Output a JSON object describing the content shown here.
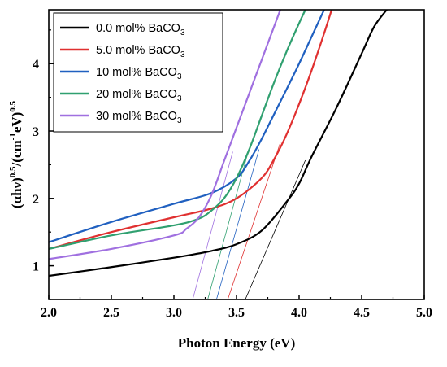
{
  "chart_data": {
    "type": "line",
    "xlabel": "Photon Energy (eV)",
    "ylabel": {
      "parts": [
        {
          "text": "(αhν)",
          "sup": false
        },
        {
          "text": "0.5",
          "sup": true
        },
        {
          "text": "/(cm",
          "sup": false
        },
        {
          "text": "-1",
          "sup": true
        },
        {
          "text": "eV)",
          "sup": false
        },
        {
          "text": "0.5",
          "sup": true
        }
      ]
    },
    "xlim": [
      2.0,
      5.0
    ],
    "ylim": [
      0.5,
      4.8
    ],
    "xticks": [
      "2.0",
      "2.5",
      "3.0",
      "3.5",
      "4.0",
      "4.5",
      "5.0"
    ],
    "xtick_values": [
      2.0,
      2.5,
      3.0,
      3.5,
      4.0,
      4.5,
      5.0
    ],
    "yticks": [
      "1",
      "2",
      "3",
      "4"
    ],
    "ytick_values": [
      1,
      2,
      3,
      4
    ],
    "grid": false,
    "legend_position": "top-left",
    "series": [
      {
        "name": "0.0 mol% BaCO",
        "sub": "3",
        "color": "#000000",
        "x": [
          2.0,
          2.5,
          3.0,
          3.3,
          3.5,
          3.7,
          3.9,
          4.0,
          4.1,
          4.3,
          4.5,
          4.6,
          4.7
        ],
        "y": [
          0.85,
          0.98,
          1.12,
          1.22,
          1.32,
          1.52,
          1.95,
          2.22,
          2.62,
          3.35,
          4.15,
          4.55,
          4.8
        ],
        "tangent": {
          "x": [
            3.57,
            4.0
          ],
          "y": [
            0.5,
            2.35
          ]
        }
      },
      {
        "name": "5.0 mol% BaCO",
        "sub": "3",
        "color": "#e03030",
        "x": [
          2.0,
          2.5,
          3.0,
          3.3,
          3.5,
          3.7,
          3.8,
          3.9,
          4.0,
          4.1,
          4.2,
          4.26
        ],
        "y": [
          1.25,
          1.5,
          1.72,
          1.85,
          2.0,
          2.3,
          2.58,
          2.95,
          3.4,
          3.9,
          4.45,
          4.8
        ],
        "tangent": {
          "x": [
            3.43,
            3.8
          ],
          "y": [
            0.5,
            2.55
          ]
        }
      },
      {
        "name": "10 mol% BaCO",
        "sub": "3",
        "color": "#2060c0",
        "x": [
          2.0,
          2.5,
          3.0,
          3.3,
          3.5,
          3.6,
          3.7,
          3.8,
          3.9,
          4.0,
          4.1,
          4.2
        ],
        "y": [
          1.35,
          1.65,
          1.92,
          2.08,
          2.3,
          2.55,
          2.88,
          3.25,
          3.62,
          4.0,
          4.4,
          4.8
        ],
        "tangent": {
          "x": [
            3.34,
            3.63
          ],
          "y": [
            0.5,
            2.4
          ]
        }
      },
      {
        "name": "20 mol% BaCO",
        "sub": "3",
        "color": "#30a070",
        "x": [
          2.0,
          2.5,
          3.0,
          3.2,
          3.3,
          3.4,
          3.5,
          3.6,
          3.7,
          3.8,
          3.9,
          4.0,
          4.05
        ],
        "y": [
          1.25,
          1.45,
          1.6,
          1.7,
          1.82,
          2.0,
          2.3,
          2.72,
          3.22,
          3.72,
          4.18,
          4.6,
          4.8
        ],
        "tangent": {
          "x": [
            3.27,
            3.55
          ],
          "y": [
            0.5,
            2.4
          ]
        }
      },
      {
        "name": "30 mol% BaCO",
        "sub": "3",
        "color": "#a070e0",
        "x": [
          2.0,
          2.5,
          3.0,
          3.1,
          3.2,
          3.3,
          3.4,
          3.5,
          3.6,
          3.7,
          3.8,
          3.85
        ],
        "y": [
          1.1,
          1.25,
          1.45,
          1.55,
          1.72,
          2.05,
          2.55,
          3.05,
          3.55,
          4.05,
          4.55,
          4.8
        ],
        "tangent": {
          "x": [
            3.15,
            3.42
          ],
          "y": [
            0.5,
            2.35
          ]
        }
      }
    ]
  }
}
